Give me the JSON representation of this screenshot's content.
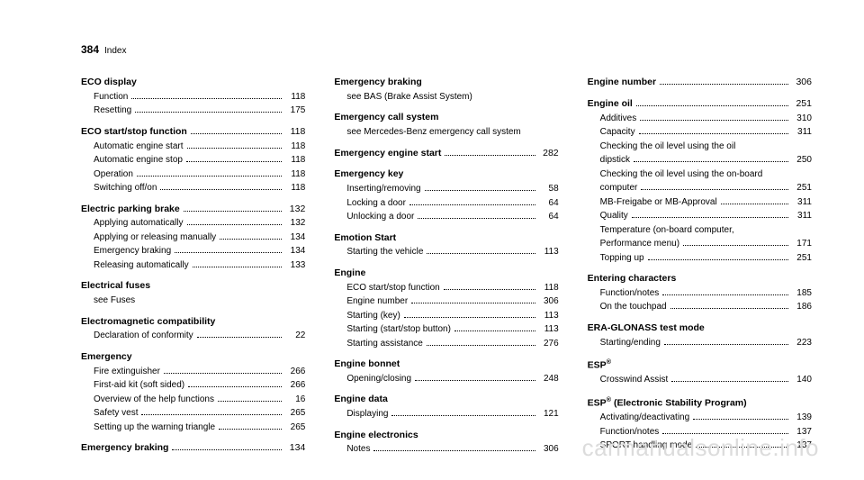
{
  "pageNumber": "384",
  "pageLabel": "Index",
  "watermark": "carmanualsonline.info",
  "columns": [
    [
      {
        "head": "ECO display",
        "subs": [
          {
            "label": "Function",
            "page": "118"
          },
          {
            "label": "Resetting",
            "page": "175"
          }
        ]
      },
      {
        "head": "ECO start/stop function",
        "headPage": "118",
        "subs": [
          {
            "label": "Automatic engine start",
            "page": "118"
          },
          {
            "label": "Automatic engine stop",
            "page": "118"
          },
          {
            "label": "Operation",
            "page": "118"
          },
          {
            "label": "Switching off/on",
            "page": "118"
          }
        ]
      },
      {
        "head": "Electric parking brake",
        "headPage": "132",
        "subs": [
          {
            "label": "Applying automatically",
            "page": "132"
          },
          {
            "label": "Applying or releasing manually",
            "page": "134"
          },
          {
            "label": "Emergency braking",
            "page": "134"
          },
          {
            "label": "Releasing automatically",
            "page": "133"
          }
        ]
      },
      {
        "head": "Electrical fuses",
        "subs": [
          {
            "label": "see Fuses",
            "see": true
          }
        ]
      },
      {
        "head": "Electromagnetic compatibility",
        "subs": [
          {
            "label": "Declaration of conformity",
            "page": "22"
          }
        ]
      },
      {
        "head": "Emergency",
        "subs": [
          {
            "label": "Fire extinguisher",
            "page": "266"
          },
          {
            "label": "First-aid kit (soft sided)",
            "page": "266"
          },
          {
            "label": "Overview of the help functions",
            "page": "16"
          },
          {
            "label": "Safety vest",
            "page": "265"
          },
          {
            "label": "Setting up the warning triangle",
            "page": "265"
          }
        ]
      },
      {
        "head": "Emergency braking",
        "headPage": "134"
      }
    ],
    [
      {
        "head": "Emergency braking",
        "subs": [
          {
            "label": "see BAS (Brake Assist System)",
            "see": true
          }
        ]
      },
      {
        "head": "Emergency call system",
        "subs": [
          {
            "label": "see Mercedes-Benz emergency call system",
            "see": true
          }
        ]
      },
      {
        "head": "Emergency engine start",
        "headPage": "282"
      },
      {
        "head": "Emergency key",
        "subs": [
          {
            "label": "Inserting/removing",
            "page": "58"
          },
          {
            "label": "Locking a door",
            "page": "64"
          },
          {
            "label": "Unlocking a door",
            "page": "64"
          }
        ]
      },
      {
        "head": "Emotion Start",
        "subs": [
          {
            "label": "Starting the vehicle",
            "page": "113"
          }
        ]
      },
      {
        "head": "Engine",
        "subs": [
          {
            "label": "ECO start/stop function",
            "page": "118"
          },
          {
            "label": "Engine number",
            "page": "306"
          },
          {
            "label": "Starting (key)",
            "page": "113"
          },
          {
            "label": "Starting (start/stop button)",
            "page": "113"
          },
          {
            "label": "Starting assistance",
            "page": "276"
          }
        ]
      },
      {
        "head": "Engine bonnet",
        "subs": [
          {
            "label": "Opening/closing",
            "page": "248"
          }
        ]
      },
      {
        "head": "Engine data",
        "subs": [
          {
            "label": "Displaying",
            "page": "121"
          }
        ]
      },
      {
        "head": "Engine electronics",
        "subs": [
          {
            "label": "Notes",
            "page": "306"
          }
        ]
      }
    ],
    [
      {
        "head": "Engine number",
        "headPage": "306"
      },
      {
        "head": "Engine oil",
        "headPage": "251",
        "subs": [
          {
            "label": "Additives",
            "page": "310"
          },
          {
            "label": "Capacity",
            "page": "311"
          },
          {
            "label": "Checking the oil level using the oil dipstick",
            "page": "250",
            "multiline": true
          },
          {
            "label": "Checking the oil level using the on-board computer",
            "page": "251",
            "multiline": true
          },
          {
            "label": "MB-Freigabe or MB-Approval",
            "page": "311"
          },
          {
            "label": "Quality",
            "page": "311"
          },
          {
            "label": "Temperature (on-board computer, Performance menu)",
            "page": "171",
            "multiline": true
          },
          {
            "label": "Topping up",
            "page": "251"
          }
        ]
      },
      {
        "head": "Entering characters",
        "subs": [
          {
            "label": "Function/notes",
            "page": "185"
          },
          {
            "label": "On the touchpad",
            "page": "186"
          }
        ]
      },
      {
        "head": "ERA-GLONASS test mode",
        "subs": [
          {
            "label": "Starting/ending",
            "page": "223"
          }
        ]
      },
      {
        "head": "ESP®",
        "subs": [
          {
            "label": "Crosswind Assist",
            "page": "140"
          }
        ]
      },
      {
        "head": "ESP® (Electronic Stability Program)",
        "subs": [
          {
            "label": "Activating/deactivating",
            "page": "139"
          },
          {
            "label": "Function/notes",
            "page": "137"
          },
          {
            "label": "SPORT handling mode",
            "page": "137"
          }
        ]
      }
    ]
  ]
}
